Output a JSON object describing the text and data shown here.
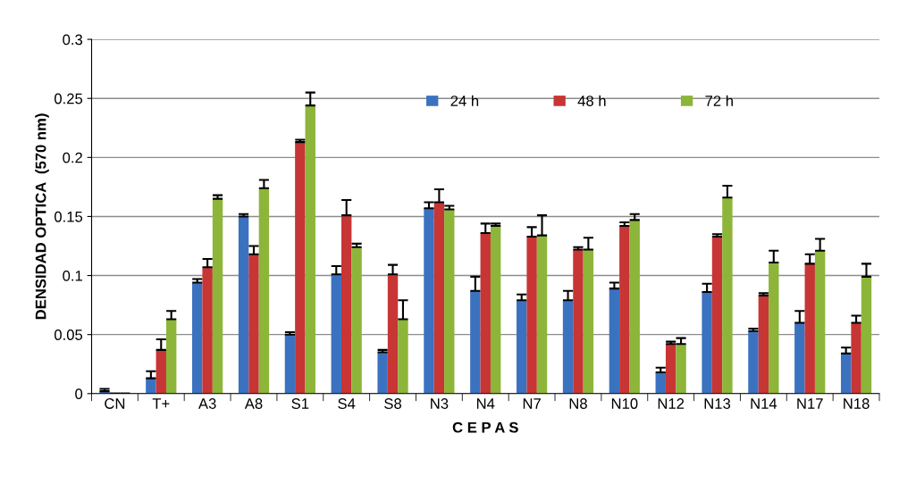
{
  "chart_data": {
    "type": "bar",
    "xlabel": "C E P A S",
    "ylabel": "DENSIDAD OPTICA  (570 nm)",
    "categories": [
      "CN",
      "T+",
      "A3",
      "A8",
      "S1",
      "S4",
      "S8",
      "N3",
      "N4",
      "N7",
      "N8",
      "N10",
      "N12",
      "N13",
      "N14",
      "N17",
      "N18"
    ],
    "series": [
      {
        "name": "24 h",
        "color": "#3b72c0",
        "values": [
          0.002,
          0.013,
          0.094,
          0.15,
          0.05,
          0.101,
          0.035,
          0.157,
          0.087,
          0.079,
          0.079,
          0.089,
          0.018,
          0.086,
          0.053,
          0.06,
          0.034
        ],
        "errors": [
          0.002,
          0.006,
          0.003,
          0.002,
          0.002,
          0.007,
          0.002,
          0.005,
          0.012,
          0.005,
          0.008,
          0.005,
          0.004,
          0.007,
          0.002,
          0.01,
          0.005
        ]
      },
      {
        "name": "48 h",
        "color": "#c73535",
        "values": [
          0,
          0.037,
          0.107,
          0.118,
          0.213,
          0.151,
          0.101,
          0.162,
          0.136,
          0.133,
          0.122,
          0.142,
          0.042,
          0.133,
          0.083,
          0.11,
          0.06
        ],
        "errors": [
          null,
          0.009,
          0.007,
          0.007,
          0.002,
          0.013,
          0.008,
          0.011,
          0.008,
          0.008,
          0.002,
          0.003,
          0.002,
          0.002,
          0.002,
          0.008,
          0.006
        ]
      },
      {
        "name": "72 h",
        "color": "#8db53a",
        "values": [
          0,
          0.063,
          0.165,
          0.174,
          0.244,
          0.124,
          0.063,
          0.156,
          0.142,
          0.134,
          0.122,
          0.147,
          0.042,
          0.166,
          0.111,
          0.121,
          0.099
        ],
        "errors": [
          null,
          0.007,
          0.003,
          0.007,
          0.011,
          0.003,
          0.016,
          0.003,
          0.002,
          0.017,
          0.01,
          0.005,
          0.005,
          0.01,
          0.01,
          0.01,
          0.011
        ]
      }
    ],
    "ylim": [
      0,
      0.3
    ],
    "yticks": [
      {
        "value": 0,
        "label": "0"
      },
      0.05,
      0.1,
      0.15,
      0.2,
      0.25,
      0.3
    ],
    "grid": "y",
    "legend": "top"
  }
}
